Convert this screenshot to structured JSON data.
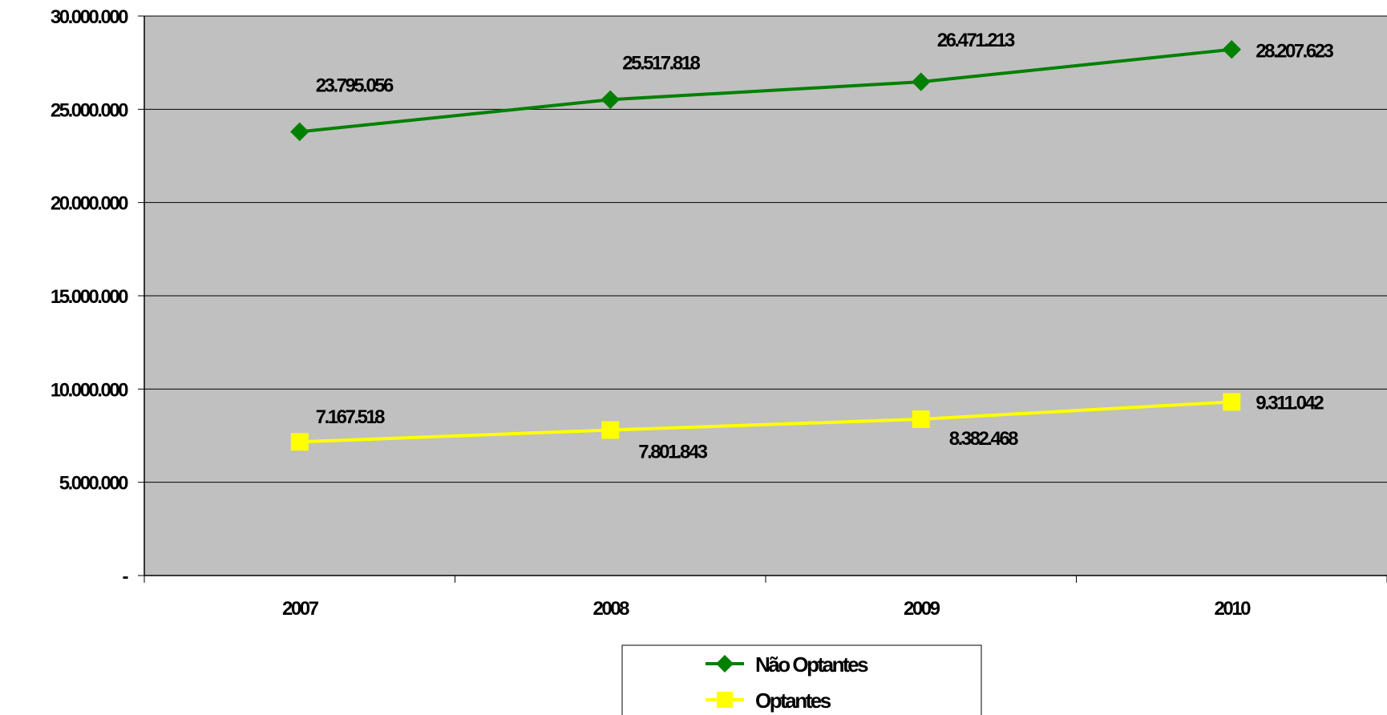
{
  "chart_data": {
    "type": "line",
    "categories": [
      "2007",
      "2008",
      "2009",
      "2010"
    ],
    "ylim": [
      0,
      30000000
    ],
    "y_ticks": [
      {
        "value": 0,
        "label": "-"
      },
      {
        "value": 5000000,
        "label": "5.000.000"
      },
      {
        "value": 10000000,
        "label": "10.000.000"
      },
      {
        "value": 15000000,
        "label": "15.000.000"
      },
      {
        "value": 20000000,
        "label": "20.000.000"
      },
      {
        "value": 25000000,
        "label": "25.000.000"
      },
      {
        "value": 30000000,
        "label": "30.000.000"
      }
    ],
    "grid": true,
    "plot_background": "#c0c0c0",
    "legend_position": "bottom",
    "series": [
      {
        "name": "Não Optantes",
        "color": "#008000",
        "marker": "diamond",
        "values": [
          23795056,
          25517818,
          26471213,
          28207623
        ],
        "labels": [
          "23.795.056",
          "25.517.818",
          "26.471.213",
          "28.207.623"
        ]
      },
      {
        "name": "Optantes",
        "color": "#ffff00",
        "marker": "square",
        "values": [
          7167518,
          7801843,
          8382468,
          9311042
        ],
        "labels": [
          "7.167.518",
          "7.801.843",
          "8.382.468",
          "9.311.042"
        ]
      }
    ]
  }
}
